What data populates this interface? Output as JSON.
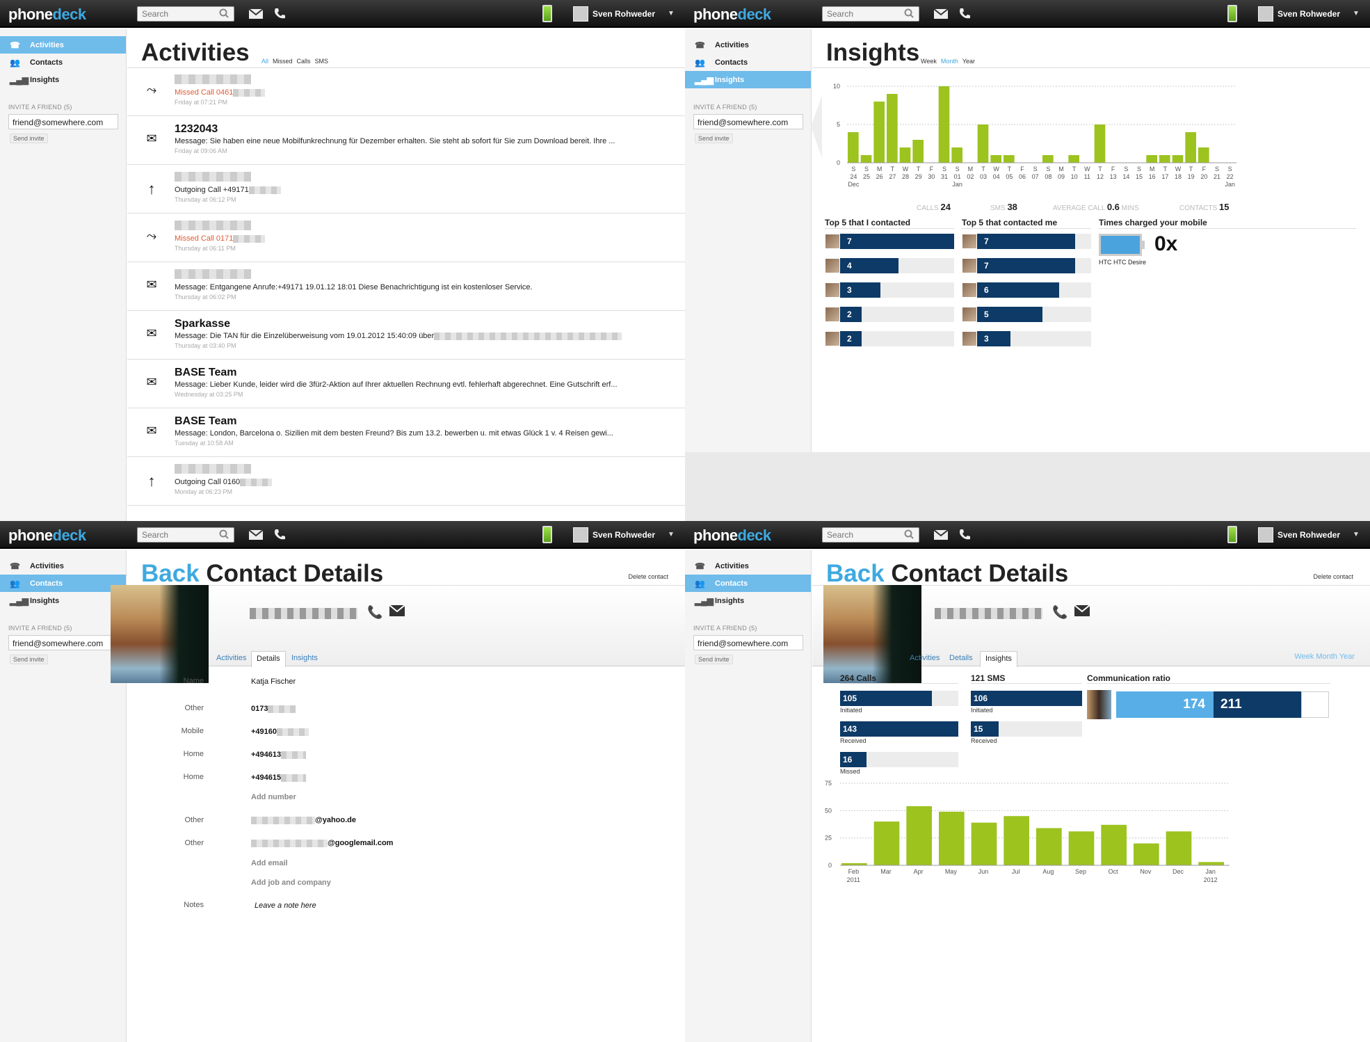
{
  "app": {
    "logo_a": "phone",
    "logo_b": "deck",
    "search_placeholder": "Search",
    "user": "Sven Rohweder"
  },
  "nav": {
    "activities": "Activities",
    "contacts": "Contacts",
    "insights": "Insights",
    "invite_label": "INVITE A FRIEND (5)",
    "invite_value": "friend@somewhere.com",
    "send_invite": "Send invite"
  },
  "activities": {
    "title": "Activities",
    "filters": [
      "All",
      "Missed",
      "Calls",
      "SMS"
    ],
    "items": [
      {
        "type": "missed",
        "name": "",
        "msg": "Missed Call 0461",
        "time": "Friday at 07:21 PM"
      },
      {
        "type": "sms",
        "name": "1232043",
        "msg": "Message: Sie haben eine neue Mobilfunkrechnung für Dezember erhalten. Sie steht ab sofort für Sie zum Download bereit. Ihre ...",
        "time": "Friday at 09:06 AM"
      },
      {
        "type": "outgoing",
        "name": "",
        "msg": "Outgoing Call +49171",
        "time": "Thursday at 06:12 PM"
      },
      {
        "type": "missed",
        "name": "",
        "msg": "Missed Call 0171",
        "time": "Thursday at 06:11 PM"
      },
      {
        "type": "sms",
        "name": "",
        "msg": "Message: Entgangene Anrufe:+49171          19.01.12 18:01 Diese Benachrichtigung ist ein kostenloser Service.",
        "time": "Thursday at 06:02 PM"
      },
      {
        "type": "sms",
        "name": "Sparkasse",
        "msg": "Message: Die TAN für die Einzelüberweisung vom 19.01.2012 15:40:09 über",
        "time": "Thursday at 03:40 PM"
      },
      {
        "type": "sms",
        "name": "BASE Team",
        "msg": "Message: Lieber Kunde, leider wird die 3für2-Aktion auf Ihrer aktuellen Rechnung evtl. fehlerhaft abgerechnet. Eine Gutschrift erf...",
        "time": "Wednesday at 03:25 PM"
      },
      {
        "type": "sms",
        "name": "BASE Team",
        "msg": "Message: London, Barcelona o. Sizilien mit dem besten Freund? Bis zum 13.2. bewerben u. mit etwas Glück 1 v. 4 Reisen gewi...",
        "time": "Tuesday at 10:58 AM"
      },
      {
        "type": "outgoing",
        "name": "",
        "msg": "Outgoing Call 0160",
        "time": "Monday at 06:23 PM"
      }
    ]
  },
  "insights": {
    "title": "Insights",
    "filters": [
      "Week",
      "Month",
      "Year"
    ],
    "stats": {
      "calls_label": "CALLS",
      "calls": "24",
      "sms_label": "SMS",
      "sms": "38",
      "avg_label": "AVERAGE CALL",
      "avg": "0.6",
      "avg_unit": "MINS",
      "contacts_label": "CONTACTS",
      "contacts": "15"
    },
    "top_contacted_title": "Top 5 that I contacted",
    "top_contacted": [
      7,
      4,
      3,
      2,
      2
    ],
    "top_contacted_me_title": "Top 5 that contacted me",
    "top_contacted_me": [
      7,
      7,
      6,
      5,
      3
    ],
    "charged_title": "Times charged your mobile",
    "charged_value": "0x",
    "device": "HTC HTC Desire"
  },
  "chart_data": [
    {
      "type": "bar",
      "title": "",
      "ylim": [
        0,
        10
      ],
      "yticks": [
        "10",
        "5",
        "0"
      ],
      "day_letters": [
        "S",
        "S",
        "M",
        "T",
        "W",
        "T",
        "F",
        "S",
        "S",
        "M",
        "T",
        "W",
        "T",
        "F",
        "S",
        "S",
        "M",
        "T",
        "W",
        "T",
        "F",
        "S",
        "S",
        "M",
        "T",
        "W",
        "T",
        "F",
        "S",
        "S"
      ],
      "categories": [
        "24",
        "25",
        "26",
        "27",
        "28",
        "29",
        "30",
        "31",
        "01",
        "02",
        "03",
        "04",
        "05",
        "06",
        "07",
        "08",
        "09",
        "10",
        "11",
        "12",
        "13",
        "14",
        "15",
        "16",
        "17",
        "18",
        "19",
        "20",
        "21",
        "22"
      ],
      "month_labels": [
        {
          "at": "24",
          "text": "Dec"
        },
        {
          "at": "01",
          "text": "Jan"
        },
        {
          "at": "22",
          "text": "Jan"
        }
      ],
      "values": [
        4,
        1,
        8,
        9,
        2,
        3,
        0,
        10,
        2,
        0,
        5,
        1,
        1,
        0,
        0,
        1,
        0,
        1,
        0,
        5,
        0,
        0,
        0,
        1,
        1,
        1,
        4,
        2,
        0,
        0
      ]
    },
    {
      "type": "bar",
      "title": "",
      "ylim": [
        0,
        75
      ],
      "yticks": [
        "75",
        "50",
        "25",
        "0"
      ],
      "categories": [
        "Feb",
        "Mar",
        "Apr",
        "May",
        "Jun",
        "Jul",
        "Aug",
        "Sep",
        "Oct",
        "Nov",
        "Dec",
        "Jan"
      ],
      "year_labels": {
        "Feb": "2011",
        "Jan": "2012"
      },
      "values": [
        2,
        40,
        54,
        49,
        39,
        45,
        34,
        31,
        37,
        20,
        31,
        3
      ]
    }
  ],
  "contact": {
    "title_back": "Back",
    "title": "Contact Details",
    "delete": "Delete contact",
    "tabs": [
      "Activities",
      "Details",
      "Insights"
    ],
    "fields": [
      {
        "label": "Name",
        "value": "Katja Fischer"
      },
      {
        "label": "Other",
        "value": "0173"
      },
      {
        "label": "Mobile",
        "value": "+49160"
      },
      {
        "label": "Home",
        "value": "+494613"
      },
      {
        "label": "Home",
        "value": "+494615"
      },
      {
        "label": "Other",
        "value": "@yahoo.de"
      },
      {
        "label": "Other",
        "value": "@googlemail.com"
      },
      {
        "label": "Notes",
        "value": "Leave a note here"
      }
    ],
    "add_number": "Add number",
    "add_email": "Add email",
    "add_job": "Add job and company",
    "wmy": "Week Month Year",
    "calls_title": "264 Calls",
    "sms_title": "121 SMS",
    "ratio_title": "Communication ratio",
    "calls_initiated": "105",
    "calls_received": "143",
    "calls_missed": "16",
    "sms_initiated": "106",
    "sms_received": "15",
    "label_initiated": "Initiated",
    "label_received": "Received",
    "label_missed": "Missed",
    "ratio_a": "174",
    "ratio_b": "211"
  }
}
